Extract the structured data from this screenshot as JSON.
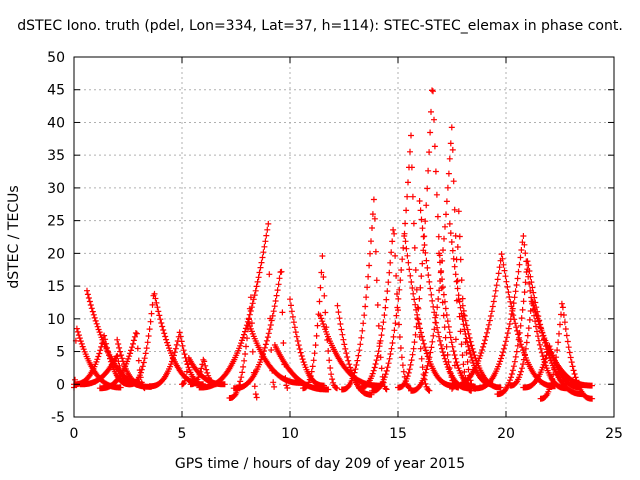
{
  "chart_data": {
    "type": "scatter",
    "title": "dSTEC Iono. truth (pdel, Lon=334, Lat=37, h=114): STEC-STEC_elemax in phase cont.",
    "xlabel": "GPS time / hours of day 209 of year 2015",
    "ylabel": "dSTEC  / TECUs",
    "xlim": [
      0,
      25
    ],
    "ylim": [
      -5,
      50
    ],
    "xticks": [
      0,
      5,
      10,
      15,
      20,
      25
    ],
    "yticks": [
      -5,
      0,
      5,
      10,
      15,
      20,
      25,
      30,
      35,
      40,
      45,
      50
    ],
    "grid": true,
    "marker": "+",
    "color": "#ff0000",
    "arcs": [
      {
        "start": 0.0,
        "peak_t": 0.1,
        "peak": 8.9,
        "end": 2.2,
        "min": -0.5
      },
      {
        "start": 0.0,
        "peak_t": 1.4,
        "peak": 7.5,
        "end": 2.6,
        "min": 0.0
      },
      {
        "start": 0.6,
        "peak_t": 0.6,
        "peak": 14.3,
        "end": 3.6,
        "min": -0.4
      },
      {
        "start": 0.3,
        "peak_t": 2.0,
        "peak": 4.5,
        "end": 2.6,
        "min": 0.0
      },
      {
        "start": 1.2,
        "peak_t": 2.9,
        "peak": 8.3,
        "end": 3.3,
        "min": -0.6
      },
      {
        "start": 2.0,
        "peak_t": 2.0,
        "peak": 6.8,
        "end": 3.2,
        "min": 0.0
      },
      {
        "start": 2.6,
        "peak_t": 3.7,
        "peak": 14.2,
        "end": 6.0,
        "min": 0.0
      },
      {
        "start": 3.5,
        "peak_t": 4.9,
        "peak": 8.0,
        "end": 6.1,
        "min": -0.3
      },
      {
        "start": 5.0,
        "peak_t": 5.3,
        "peak": 4.1,
        "end": 7.0,
        "min": 0.0
      },
      {
        "start": 5.4,
        "peak_t": 6.0,
        "peak": 4.0,
        "end": 6.6,
        "min": 0.0
      },
      {
        "start": 7.2,
        "peak_t": 8.2,
        "peak": 13.7,
        "end": 8.5,
        "min": -2.1
      },
      {
        "start": 5.8,
        "peak_t": 9.0,
        "peak": 24.6,
        "end": 9.3,
        "min": -0.5
      },
      {
        "start": 8.1,
        "peak_t": 8.1,
        "peak": 9.3,
        "end": 10.6,
        "min": 0.2
      },
      {
        "start": 7.4,
        "peak_t": 9.6,
        "peak": 18.0,
        "end": 9.9,
        "min": -0.6
      },
      {
        "start": 9.3,
        "peak_t": 9.3,
        "peak": 6.0,
        "end": 11.8,
        "min": -0.8
      },
      {
        "start": 10.0,
        "peak_t": 10.0,
        "peak": 13.0,
        "end": 11.6,
        "min": -0.2
      },
      {
        "start": 10.6,
        "peak_t": 11.5,
        "peak": 19.6,
        "end": 12.2,
        "min": -0.6
      },
      {
        "start": 11.4,
        "peak_t": 11.4,
        "peak": 10.5,
        "end": 14.2,
        "min": -0.2
      },
      {
        "start": 12.2,
        "peak_t": 12.2,
        "peak": 12.0,
        "end": 13.8,
        "min": -1.6
      },
      {
        "start": 12.4,
        "peak_t": 13.9,
        "peak": 29.0,
        "end": 14.5,
        "min": -0.8
      },
      {
        "start": 13.2,
        "peak_t": 14.8,
        "peak": 24.6,
        "end": 15.6,
        "min": -0.6
      },
      {
        "start": 13.8,
        "peak_t": 15.6,
        "peak": 38.0,
        "end": 16.5,
        "min": -1.0
      },
      {
        "start": 15.0,
        "peak_t": 16.6,
        "peak": 46.8,
        "end": 17.8,
        "min": -0.5
      },
      {
        "start": 15.6,
        "peak_t": 17.5,
        "peak": 39.8,
        "end": 18.4,
        "min": -1.0
      },
      {
        "start": 15.3,
        "peak_t": 15.3,
        "peak": 23.0,
        "end": 17.6,
        "min": -0.2
      },
      {
        "start": 16.0,
        "peak_t": 16.0,
        "peak": 28.0,
        "end": 18.3,
        "min": -0.6
      },
      {
        "start": 16.9,
        "peak_t": 16.9,
        "peak": 20.0,
        "end": 18.6,
        "min": -0.4
      },
      {
        "start": 17.4,
        "peak_t": 17.4,
        "peak": 24.5,
        "end": 19.4,
        "min": 0.0
      },
      {
        "start": 17.5,
        "peak_t": 17.8,
        "peak": 27.8,
        "end": 18.6,
        "min": -0.7
      },
      {
        "start": 18.0,
        "peak_t": 18.0,
        "peak": 12.0,
        "end": 19.8,
        "min": -0.5
      },
      {
        "start": 17.5,
        "peak_t": 19.8,
        "peak": 20.0,
        "end": 22.3,
        "min": -0.3
      },
      {
        "start": 18.6,
        "peak_t": 20.8,
        "peak": 22.8,
        "end": 22.8,
        "min": -0.6
      },
      {
        "start": 19.6,
        "peak_t": 21.0,
        "peak": 19.0,
        "end": 23.6,
        "min": -1.5
      },
      {
        "start": 20.2,
        "peak_t": 21.2,
        "peak": 13.0,
        "end": 24.0,
        "min": -0.2
      },
      {
        "start": 21.6,
        "peak_t": 22.6,
        "peak": 12.7,
        "end": 24.0,
        "min": -2.2
      },
      {
        "start": 20.8,
        "peak_t": 22.0,
        "peak": 6.0,
        "end": 23.5,
        "min": -0.5
      }
    ]
  }
}
